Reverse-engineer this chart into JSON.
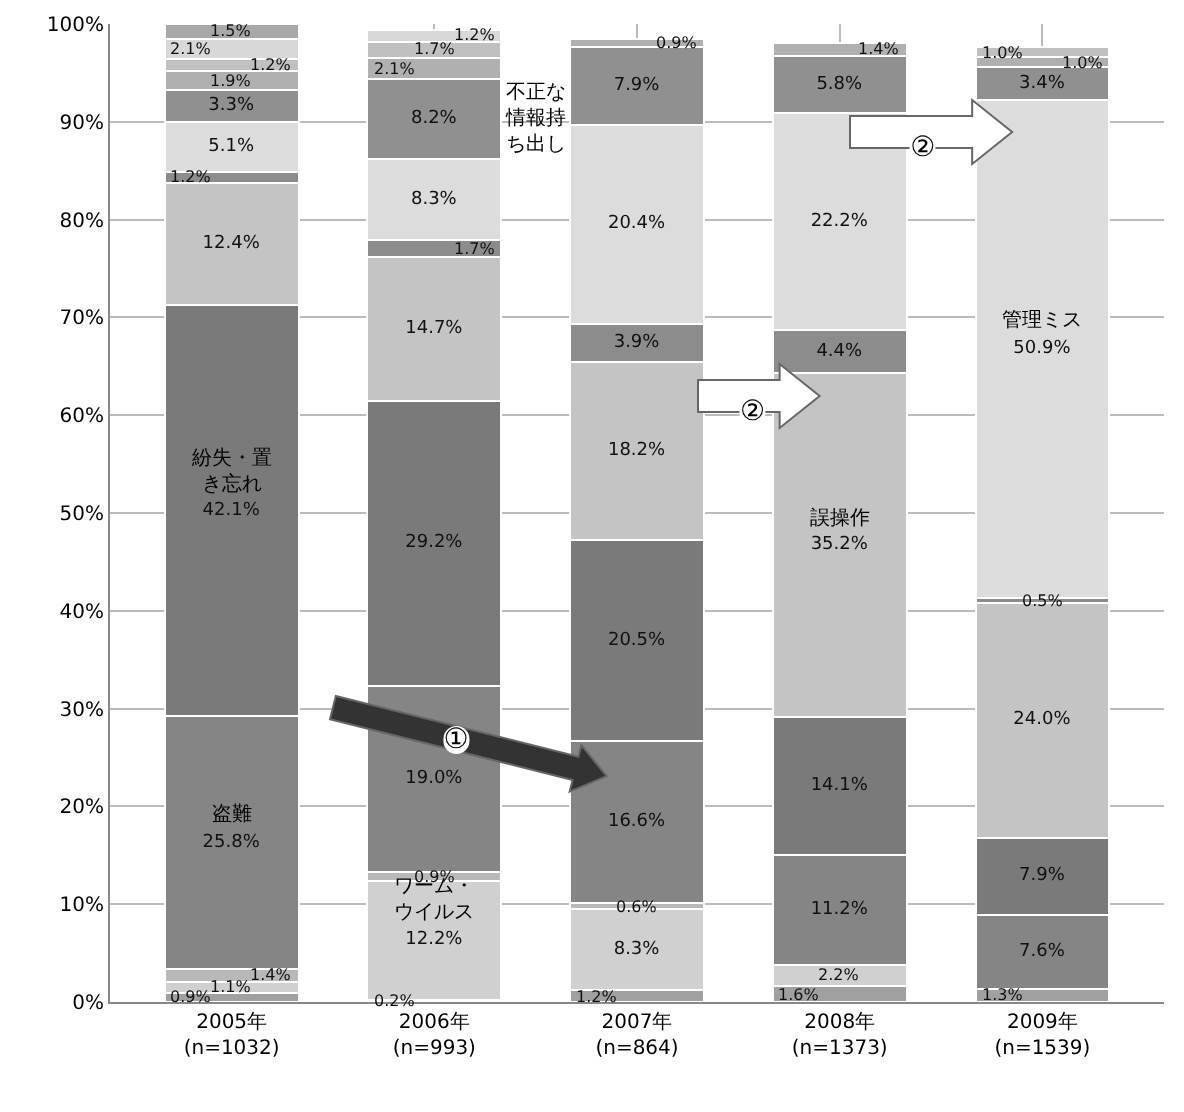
{
  "chart_data": {
    "type": "bar",
    "stacked": true,
    "grid": true,
    "categories": [
      "2005年\n(n=1032)",
      "2006年\n(n=993)",
      "2007年\n(n=864)",
      "2008年\n(n=1373)",
      "2009年\n(n=1539)"
    ],
    "ylim": [
      0,
      100
    ],
    "yticks": [
      {
        "value": 0,
        "label": "0%"
      },
      {
        "value": 10,
        "label": "10%"
      },
      {
        "value": 20,
        "label": "20%"
      },
      {
        "value": 30,
        "label": "30%"
      },
      {
        "value": 40,
        "label": "40%"
      },
      {
        "value": 50,
        "label": "50%"
      },
      {
        "value": 60,
        "label": "60%"
      },
      {
        "value": 70,
        "label": "70%"
      },
      {
        "value": 80,
        "label": "80%"
      },
      {
        "value": 90,
        "label": "90%"
      },
      {
        "value": 100,
        "label": "100%"
      }
    ],
    "series": [
      {
        "color": "#a0a0a0",
        "values": [
          0.9,
          0.2,
          1.2,
          1.6,
          1.3
        ],
        "value_labels": [
          "0.9%",
          "0.2%",
          "1.2%",
          "1.6%",
          "1.3%"
        ]
      },
      {
        "name": "ワーム・ウイルス",
        "color": "#d0d0d0",
        "values": [
          1.1,
          12.2,
          8.3,
          2.2,
          null
        ],
        "value_labels": [
          "1.1%",
          "12.2%",
          "8.3%",
          "2.2%",
          null
        ]
      },
      {
        "color": "#b8b8b8",
        "values": [
          1.4,
          0.9,
          0.6,
          null,
          null
        ],
        "value_labels": [
          "1.4%",
          "0.9%",
          "0.6%",
          null,
          null
        ]
      },
      {
        "name": "盗難",
        "color": "#858585",
        "values": [
          25.8,
          19.0,
          16.6,
          11.2,
          7.6
        ],
        "value_labels": [
          "25.8%",
          "19.0%",
          "16.6%",
          "11.2%",
          "7.6%"
        ]
      },
      {
        "name": "紛失・置き忘れ",
        "color": "#7a7a7a",
        "values": [
          42.1,
          29.2,
          20.5,
          14.1,
          7.9
        ],
        "value_labels": [
          "42.1%",
          "29.2%",
          "20.5%",
          "14.1%",
          "7.9%"
        ]
      },
      {
        "name": "誤操作",
        "color": "#c4c4c4",
        "values": [
          12.4,
          14.7,
          18.2,
          35.2,
          24.0
        ],
        "value_labels": [
          "12.4%",
          "14.7%",
          "18.2%",
          "35.2%",
          "24.0%"
        ]
      },
      {
        "color": "#8c8c8c",
        "values": [
          1.2,
          1.7,
          3.9,
          4.4,
          0.5
        ],
        "value_labels": [
          "1.2%",
          "1.7%",
          "3.9%",
          "4.4%",
          "0.5%"
        ]
      },
      {
        "name": "管理ミス",
        "color": "#dcdcdc",
        "values": [
          5.1,
          8.3,
          20.4,
          22.2,
          50.9
        ],
        "value_labels": [
          "5.1%",
          "8.3%",
          "20.4%",
          "22.2%",
          "50.9%"
        ]
      },
      {
        "name": "不正な情報持ち出し",
        "color": "#909090",
        "values": [
          3.3,
          8.2,
          7.9,
          5.8,
          3.4
        ],
        "value_labels": [
          "3.3%",
          "8.2%",
          "7.9%",
          "5.8%",
          "3.4%"
        ]
      },
      {
        "color": "#b0b0b0",
        "values": [
          1.9,
          2.1,
          0.9,
          1.4,
          1.0
        ],
        "value_labels": [
          "1.9%",
          "2.1%",
          "0.9%",
          "1.4%",
          "1.0%"
        ]
      },
      {
        "color": "#c0c0c0",
        "values": [
          1.2,
          1.7,
          null,
          null,
          1.0
        ],
        "value_labels": [
          "1.2%",
          "1.7%",
          null,
          null,
          "1.0%"
        ]
      },
      {
        "color": "#d8d8d8",
        "values": [
          2.1,
          1.2,
          null,
          null,
          null
        ],
        "value_labels": [
          "2.1%",
          "1.2%",
          null,
          null,
          null
        ]
      },
      {
        "color": "#a8a8a8",
        "values": [
          1.5,
          null,
          null,
          null,
          null
        ],
        "value_labels": [
          "1.5%",
          null,
          null,
          null,
          null
        ]
      }
    ],
    "annotations": [
      "①",
      "②",
      "②"
    ]
  }
}
